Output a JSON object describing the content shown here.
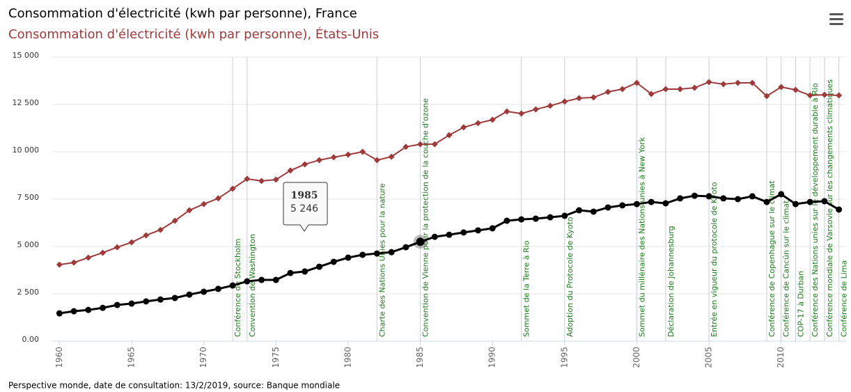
{
  "chart_data": {
    "type": "line",
    "source": "Perspective monde, date de consultation: 13/2/2019, source: Banque mondiale",
    "x": [
      1960,
      1961,
      1962,
      1963,
      1964,
      1965,
      1966,
      1967,
      1968,
      1969,
      1970,
      1971,
      1972,
      1973,
      1974,
      1975,
      1976,
      1977,
      1978,
      1979,
      1980,
      1981,
      1982,
      1983,
      1984,
      1985,
      1986,
      1987,
      1988,
      1989,
      1990,
      1991,
      1992,
      1993,
      1994,
      1995,
      1996,
      1997,
      1998,
      1999,
      2000,
      2001,
      2002,
      2003,
      2004,
      2005,
      2006,
      2007,
      2008,
      2009,
      2010,
      2011,
      2012,
      2013,
      2014
    ],
    "series": [
      {
        "name": "Consommation d'électricité (kwh par personne), France",
        "color": "#000000",
        "marker": "circle",
        "values": [
          1470,
          1580,
          1650,
          1760,
          1910,
          1985,
          2100,
          2200,
          2280,
          2460,
          2610,
          2760,
          2940,
          3160,
          3235,
          3235,
          3600,
          3680,
          3930,
          4190,
          4410,
          4560,
          4630,
          4700,
          4960,
          5246,
          5510,
          5620,
          5740,
          5850,
          5960,
          6360,
          6430,
          6470,
          6540,
          6620,
          6910,
          6840,
          7060,
          7170,
          7240,
          7350,
          7280,
          7540,
          7680,
          7650,
          7540,
          7500,
          7650,
          7350,
          7760,
          7240,
          7350,
          7390,
          6950
        ]
      },
      {
        "name": "Consommation d'électricité (kwh par personne), États-Unis",
        "color": "#9e3a3a",
        "marker": "diamond",
        "values": [
          4040,
          4150,
          4410,
          4670,
          4960,
          5220,
          5590,
          5880,
          6360,
          6910,
          7240,
          7540,
          8050,
          8570,
          8460,
          8530,
          9010,
          9340,
          9560,
          9710,
          9850,
          10000,
          9560,
          9740,
          10260,
          10400,
          10400,
          10880,
          11290,
          11510,
          11690,
          12130,
          12020,
          12240,
          12430,
          12650,
          12830,
          12870,
          13160,
          13310,
          13640,
          13050,
          13310,
          13310,
          13380,
          13680,
          13570,
          13640,
          13640,
          12940,
          13420,
          13270,
          12980,
          13010,
          12980
        ]
      }
    ],
    "xlim": [
      1959.5,
      2014.5
    ],
    "xticks": [
      1960,
      1965,
      1970,
      1975,
      1980,
      1985,
      1990,
      1995,
      2000,
      2005,
      2010
    ],
    "ylim": [
      0,
      15000
    ],
    "yticks": [
      {
        "value": 0,
        "label": "0.00"
      },
      {
        "value": 2500,
        "label": "2 500"
      },
      {
        "value": 5000,
        "label": "5 000"
      },
      {
        "value": 7500,
        "label": "7 500"
      },
      {
        "value": 10000,
        "label": "10 000"
      },
      {
        "value": 12500,
        "label": "12 500"
      },
      {
        "value": 15000,
        "label": "15 000"
      }
    ],
    "grid": true,
    "events": [
      {
        "year": 1972,
        "label": "Conférence de Stockholm"
      },
      {
        "year": 1973,
        "label": "Convention de Washington"
      },
      {
        "year": 1982,
        "label": "Charte des Nations Unies pour la nature"
      },
      {
        "year": 1985,
        "label": "Convention de Vienne pour la protection de la couche d'ozone"
      },
      {
        "year": 1992,
        "label": "Sommet de la Terre à Rio"
      },
      {
        "year": 1995,
        "label": "Adoption du Protocole de Kyoto"
      },
      {
        "year": 2000,
        "label": "Sommet du millénaire des Nations unies à New York"
      },
      {
        "year": 2002,
        "label": "Déclaration de Johannesburg"
      },
      {
        "year": 2005,
        "label": "Entrée en vigueur du protocole de Kyoto"
      },
      {
        "year": 2009,
        "label": "Conférence de Copenhague sur le climat"
      },
      {
        "year": 2010,
        "label": "Conférence de Cancún sur le climat"
      },
      {
        "year": 2011,
        "label": "COP-17 à Durban"
      },
      {
        "year": 2012,
        "label": "Conférence des Nations unies sur le développement durable à Rio"
      },
      {
        "year": 2013,
        "label": "Conférence mondiale de Varsovie sur les changements climatiques"
      },
      {
        "year": 2014,
        "label": "Conférence de Lima"
      }
    ],
    "tooltip": {
      "year": 1985,
      "value": 5246,
      "value_label": "5 246"
    }
  }
}
